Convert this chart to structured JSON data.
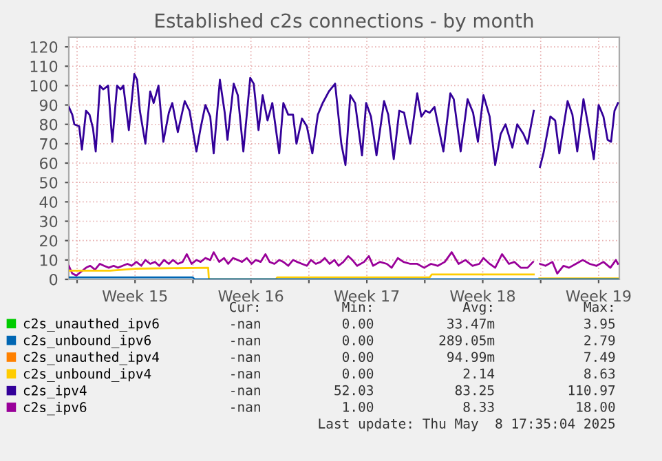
{
  "chart_data": {
    "type": "line",
    "title": "Established c2s connections - by month",
    "xlim": [
      "2025-04-05T12:00",
      "2025-05-08T18:00"
    ],
    "ylim": [
      0,
      125
    ],
    "xticks": [
      {
        "value": "2025-04-06T00:00",
        "label": null
      },
      {
        "value": "2025-04-09T12:00",
        "label": "Week 15"
      },
      {
        "value": "2025-04-13T00:00",
        "label": null
      },
      {
        "value": "2025-04-16T12:00",
        "label": "Week 16"
      },
      {
        "value": "2025-04-20T00:00",
        "label": null
      },
      {
        "value": "2025-04-23T12:00",
        "label": "Week 17"
      },
      {
        "value": "2025-04-27T00:00",
        "label": null
      },
      {
        "value": "2025-04-30T12:00",
        "label": "Week 18"
      },
      {
        "value": "2025-05-04T00:00",
        "label": null
      },
      {
        "value": "2025-05-07T12:00",
        "label": "Week 19"
      }
    ],
    "yticks": [
      0,
      10,
      20,
      30,
      40,
      50,
      60,
      70,
      80,
      90,
      100,
      110,
      120
    ],
    "grid": true,
    "legend": "bottom left",
    "series": [
      {
        "name": "c2s_unauthed_ipv6",
        "color": "#00cc00"
      },
      {
        "name": "c2s_unbound_ipv6",
        "color": "#0066b3",
        "x": [
          "2025-04-05T12:00",
          "2025-04-13T00:00",
          "2025-04-13T02:00",
          "2025-05-08T16:00"
        ],
        "values": [
          1,
          1,
          0,
          0
        ]
      },
      {
        "name": "c2s_unauthed_ipv4",
        "color": "#ff8000"
      },
      {
        "name": "c2s_unbound_ipv4",
        "color": "#ffcc00",
        "x": [
          "2025-04-05T12:00",
          "2025-04-08T00:00",
          "2025-04-09T12:00",
          "2025-04-13T22:00",
          "2025-04-13T23:00",
          "2025-04-18T00:00",
          "2025-04-18T02:00",
          "2025-04-27T07:00",
          "2025-04-27T10:00",
          "2025-05-03T14:00",
          "2025-05-03T18:00",
          "2025-05-03T22:00",
          "2025-05-08T16:00"
        ],
        "values": [
          4.5,
          4.5,
          5.5,
          6,
          0,
          0,
          1,
          1,
          2.5,
          2.5,
          null,
          0.5,
          0.5
        ]
      },
      {
        "name": "c2s_ipv4",
        "color": "#330099",
        "x": [
          "2025-04-05T12:00",
          "2025-04-05T17:00",
          "2025-04-05T20:00",
          "2025-04-06T03:00",
          "2025-04-06T07:00",
          "2025-04-06T13:00",
          "2025-04-06T18:00",
          "2025-04-06T23:00",
          "2025-04-07T03:00",
          "2025-04-07T09:00",
          "2025-04-07T14:00",
          "2025-04-07T21:00",
          "2025-04-08T03:00",
          "2025-04-08T10:00",
          "2025-04-08T15:00",
          "2025-04-08T19:00",
          "2025-04-09T03:00",
          "2025-04-09T11:00",
          "2025-04-09T15:00",
          "2025-04-09T19:00",
          "2025-04-10T03:00",
          "2025-04-10T10:00",
          "2025-04-10T15:00",
          "2025-04-10T22:00",
          "2025-04-11T05:00",
          "2025-04-11T13:00",
          "2025-04-11T18:00",
          "2025-04-12T02:00",
          "2025-04-12T12:00",
          "2025-04-12T19:00",
          "2025-04-13T05:00",
          "2025-04-13T11:00",
          "2025-04-13T18:00",
          "2025-04-14T01:00",
          "2025-04-14T06:00",
          "2025-04-14T15:00",
          "2025-04-14T22:00",
          "2025-04-15T02:00",
          "2025-04-15T11:00",
          "2025-04-15T17:00",
          "2025-04-16T01:00",
          "2025-04-16T11:00",
          "2025-04-16T16:00",
          "2025-04-16T23:00",
          "2025-04-17T05:00",
          "2025-04-17T12:00",
          "2025-04-17T19:00",
          "2025-04-18T05:00",
          "2025-04-18T11:00",
          "2025-04-18T18:00",
          "2025-04-19T01:00",
          "2025-04-19T06:00",
          "2025-04-19T14:00",
          "2025-04-19T21:00",
          "2025-04-20T05:00",
          "2025-04-20T13:00",
          "2025-04-20T20:00",
          "2025-04-21T05:00",
          "2025-04-21T14:00",
          "2025-04-21T23:00",
          "2025-04-22T05:00",
          "2025-04-22T12:00",
          "2025-04-22T19:00",
          "2025-04-23T05:00",
          "2025-04-23T11:00",
          "2025-04-23T18:00",
          "2025-04-24T02:00",
          "2025-04-24T13:00",
          "2025-04-24T19:00",
          "2025-04-25T03:00",
          "2025-04-25T11:00",
          "2025-04-25T18:00",
          "2025-04-26T03:00",
          "2025-04-26T13:00",
          "2025-04-26T19:00",
          "2025-04-27T01:00",
          "2025-04-27T07:00",
          "2025-04-27T14:00",
          "2025-04-28T03:00",
          "2025-04-28T13:00",
          "2025-04-28T18:00",
          "2025-04-29T04:00",
          "2025-04-29T14:00",
          "2025-04-29T22:00",
          "2025-04-30T05:00",
          "2025-04-30T13:00",
          "2025-04-30T22:00",
          "2025-05-01T06:00",
          "2025-05-01T14:00",
          "2025-05-01T21:00",
          "2025-05-02T07:00",
          "2025-05-02T14:00",
          "2025-05-02T23:00",
          "2025-05-03T05:00",
          "2025-05-03T14:00",
          "2025-05-03T18:00",
          "2025-05-03T23:00",
          "2025-05-04T04:00",
          "2025-05-04T14:00",
          "2025-05-04T21:00",
          "2025-05-05T03:00",
          "2025-05-05T15:00",
          "2025-05-05T22:00",
          "2025-05-06T05:00",
          "2025-05-06T14:00",
          "2025-05-06T21:00",
          "2025-05-07T05:00",
          "2025-05-07T12:00",
          "2025-05-07T19:00",
          "2025-05-08T01:00",
          "2025-05-08T06:00",
          "2025-05-08T11:00",
          "2025-05-08T16:00"
        ],
        "values": [
          89,
          85,
          80,
          79,
          67,
          87,
          85,
          78,
          66,
          100,
          98,
          100,
          71,
          100,
          98,
          100,
          77,
          106,
          103,
          87,
          70,
          97,
          91,
          100,
          71,
          86,
          91,
          76,
          92,
          87,
          66,
          78,
          90,
          84,
          65,
          103,
          86,
          72,
          101,
          95,
          66,
          104,
          101,
          77,
          95,
          82,
          91,
          65,
          91,
          85,
          85,
          70,
          83,
          79,
          65,
          85,
          91,
          97,
          101,
          70,
          59,
          95,
          91,
          64,
          91,
          84,
          64,
          92,
          85,
          62,
          87,
          86,
          70,
          96,
          84,
          87,
          86,
          89,
          66,
          96,
          93,
          66,
          93,
          86,
          71,
          95,
          84,
          59,
          75,
          80,
          68,
          80,
          75,
          70,
          87,
          null,
          58,
          65,
          84,
          82,
          65,
          92,
          85,
          66,
          93,
          79,
          62,
          90,
          84,
          72,
          71,
          87,
          91
        ]
      },
      {
        "name": "c2s_ipv6",
        "color": "#990099",
        "x": [
          "2025-04-05T12:00",
          "2025-04-05T17:00",
          "2025-04-05T23:00",
          "2025-04-06T06:00",
          "2025-04-06T13:00",
          "2025-04-06T19:00",
          "2025-04-07T02:00",
          "2025-04-07T09:00",
          "2025-04-07T15:00",
          "2025-04-07T22:00",
          "2025-04-08T05:00",
          "2025-04-08T11:00",
          "2025-04-08T18:00",
          "2025-04-09T01:00",
          "2025-04-09T07:00",
          "2025-04-09T14:00",
          "2025-04-09T21:00",
          "2025-04-10T03:00",
          "2025-04-10T10:00",
          "2025-04-10T17:00",
          "2025-04-10T23:00",
          "2025-04-11T06:00",
          "2025-04-11T13:00",
          "2025-04-11T19:00",
          "2025-04-12T02:00",
          "2025-04-12T09:00",
          "2025-04-12T15:00",
          "2025-04-12T22:00",
          "2025-04-13T05:00",
          "2025-04-13T11:00",
          "2025-04-13T18:00",
          "2025-04-14T01:00",
          "2025-04-14T06:00",
          "2025-04-14T14:00",
          "2025-04-14T21:00",
          "2025-04-15T03:00",
          "2025-04-15T10:00",
          "2025-04-15T17:00",
          "2025-04-15T23:00",
          "2025-04-16T06:00",
          "2025-04-16T13:00",
          "2025-04-16T19:00",
          "2025-04-17T02:00",
          "2025-04-17T09:00",
          "2025-04-17T15:00",
          "2025-04-17T22:00",
          "2025-04-18T05:00",
          "2025-04-18T11:00",
          "2025-04-18T18:00",
          "2025-04-19T01:00",
          "2025-04-19T07:00",
          "2025-04-19T14:00",
          "2025-04-19T21:00",
          "2025-04-20T03:00",
          "2025-04-20T10:00",
          "2025-04-20T17:00",
          "2025-04-20T23:00",
          "2025-04-21T06:00",
          "2025-04-21T13:00",
          "2025-04-21T19:00",
          "2025-04-22T02:00",
          "2025-04-22T09:00",
          "2025-04-22T15:00",
          "2025-04-22T22:00",
          "2025-04-23T08:00",
          "2025-04-23T15:00",
          "2025-04-23T21:00",
          "2025-04-24T07:00",
          "2025-04-24T17:00",
          "2025-04-25T00:00",
          "2025-04-25T09:00",
          "2025-04-25T17:00",
          "2025-04-26T03:00",
          "2025-04-26T13:00",
          "2025-04-26T23:00",
          "2025-04-27T09:00",
          "2025-04-27T19:00",
          "2025-04-28T05:00",
          "2025-04-28T15:00",
          "2025-04-29T01:00",
          "2025-04-29T11:00",
          "2025-04-29T21:00",
          "2025-04-30T07:00",
          "2025-04-30T13:00",
          "2025-04-30T22:00",
          "2025-05-01T06:00",
          "2025-05-01T16:00",
          "2025-05-02T02:00",
          "2025-05-02T10:00",
          "2025-05-02T19:00",
          "2025-05-03T05:00",
          "2025-05-03T13:00",
          "2025-05-03T18:00",
          "2025-05-03T23:00",
          "2025-05-04T07:00",
          "2025-05-04T17:00",
          "2025-05-05T00:00",
          "2025-05-05T09:00",
          "2025-05-05T17:00",
          "2025-05-06T03:00",
          "2025-05-06T13:00",
          "2025-05-06T23:00",
          "2025-05-07T09:00",
          "2025-05-07T19:00",
          "2025-05-08T05:00",
          "2025-05-08T13:00",
          "2025-05-08T16:00"
        ],
        "values": [
          7,
          3,
          2,
          4,
          6,
          7,
          5,
          8,
          7,
          6,
          7,
          6,
          7,
          8,
          7,
          9,
          7,
          10,
          8,
          9,
          7,
          10,
          8,
          10,
          8,
          9,
          13,
          8,
          10,
          9,
          11,
          10,
          14,
          9,
          11,
          8,
          11,
          10,
          9,
          11,
          8,
          10,
          9,
          13,
          9,
          8,
          10,
          9,
          7,
          10,
          9,
          8,
          7,
          10,
          8,
          9,
          11,
          8,
          10,
          7,
          9,
          12,
          10,
          7,
          9,
          12,
          7,
          9,
          8,
          6,
          11,
          9,
          8,
          8,
          6,
          8,
          7,
          9,
          14,
          8,
          10,
          7,
          8,
          11,
          8,
          6,
          13,
          8,
          9,
          6,
          6,
          9,
          null,
          8,
          7,
          9,
          3,
          7,
          6,
          8,
          10,
          8,
          7,
          9,
          6,
          10,
          8
        ]
      }
    ],
    "annotations": [
      "Cur:          Min:           Avg:           Max:",
      "-nan          0.00         33.47m           3.95",
      "-nan          0.00        289.05m           2.79",
      "-nan          0.00         94.99m           7.49",
      "-nan          0.00           2.14           8.63",
      "-nan         52.03          83.25         110.97",
      "-nan          1.00           8.33          18.00",
      "Last update: Thu May  8 17:35:04 2025"
    ]
  }
}
